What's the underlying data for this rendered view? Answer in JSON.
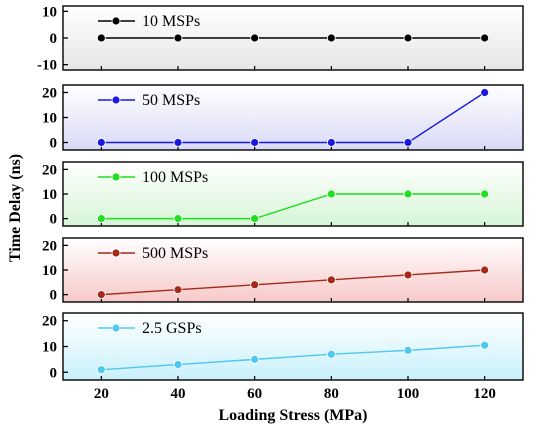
{
  "chart_data": {
    "type": "line",
    "xlabel": "Loading Stress (MPa)",
    "ylabel": "Time Delay (ns)",
    "x": [
      20,
      40,
      60,
      80,
      100,
      120
    ],
    "xlim": [
      10,
      130
    ],
    "panels": [
      {
        "name": "10 MSPs",
        "color": "#000000",
        "bg": [
          "#ffffff",
          "#e6e6e6"
        ],
        "ylim": [
          -12,
          12
        ],
        "yticks": [
          -10,
          0,
          10
        ],
        "values": [
          0,
          0,
          0,
          0,
          0,
          0
        ]
      },
      {
        "name": "50 MSPs",
        "color": "#1a1adf",
        "bg": [
          "#ffffff",
          "#d9d9f7"
        ],
        "ylim": [
          -3,
          23
        ],
        "yticks": [
          0,
          10,
          20
        ],
        "values": [
          0,
          0,
          0,
          0,
          0,
          20
        ]
      },
      {
        "name": "100 MSPs",
        "color": "#1ee01e",
        "bg": [
          "#ffffff",
          "#d6f5d6"
        ],
        "ylim": [
          -3,
          23
        ],
        "yticks": [
          0,
          10,
          20
        ],
        "values": [
          0,
          0,
          0,
          10,
          10,
          10
        ]
      },
      {
        "name": "500 MSPs",
        "color": "#a52a1a",
        "bg": [
          "#ffffff",
          "#f7c9c9"
        ],
        "ylim": [
          -3,
          23
        ],
        "yticks": [
          0,
          10,
          20
        ],
        "values": [
          0,
          2,
          4,
          6,
          8,
          10
        ]
      },
      {
        "name": "2.5 GSPs",
        "color": "#4fc8f0",
        "bg": [
          "#ffffff",
          "#c9f0fb"
        ],
        "ylim": [
          -3,
          23
        ],
        "yticks": [
          0,
          10,
          20
        ],
        "values": [
          1,
          3,
          5,
          7,
          8.5,
          10.5
        ]
      }
    ],
    "xticks": [
      20,
      40,
      60,
      80,
      100,
      120
    ]
  }
}
